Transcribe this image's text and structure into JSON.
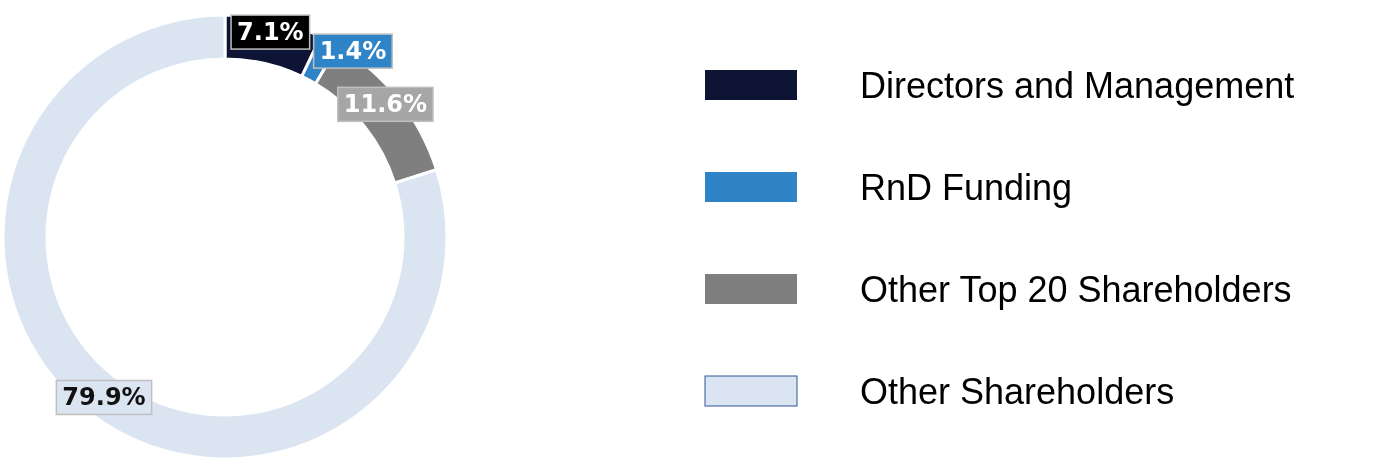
{
  "chart_data": {
    "type": "donut",
    "categories": [
      "Directors and Management",
      "RnD Funding",
      "Other Top 20 Shareholders",
      "Other Shareholders"
    ],
    "values": [
      7.1,
      1.4,
      11.6,
      79.9
    ],
    "colors": [
      "#0e1434",
      "#2e84c6",
      "#7f7f7f",
      "#dbe5f1"
    ],
    "value_labels": [
      "7.1%",
      "1.4%",
      "11.6%",
      "79.9%"
    ],
    "legend": "right"
  }
}
